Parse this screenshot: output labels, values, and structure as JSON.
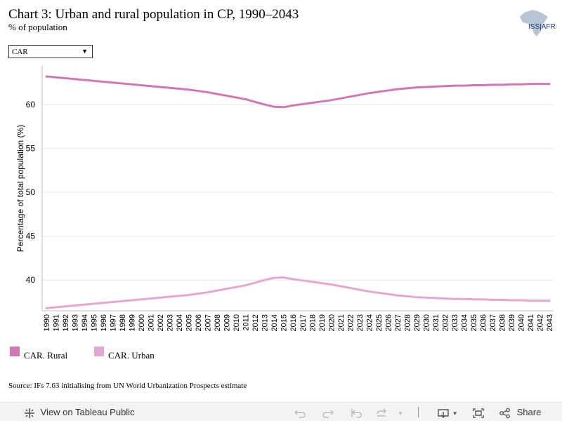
{
  "header": {
    "title": "Chart 3: Urban and rural population in CP, 1990–2043",
    "subtitle": "% of population"
  },
  "logo": {
    "text": "ISS|AFRICA"
  },
  "filter": {
    "selected": "CAR"
  },
  "chart_data": {
    "type": "line",
    "x": [
      1990,
      1991,
      1992,
      1993,
      1994,
      1995,
      1996,
      1997,
      1998,
      1999,
      2000,
      2001,
      2002,
      2003,
      2004,
      2005,
      2006,
      2007,
      2008,
      2009,
      2010,
      2011,
      2012,
      2013,
      2014,
      2015,
      2016,
      2017,
      2018,
      2019,
      2020,
      2021,
      2022,
      2023,
      2024,
      2025,
      2026,
      2027,
      2028,
      2029,
      2030,
      2031,
      2032,
      2033,
      2034,
      2035,
      2036,
      2037,
      2038,
      2039,
      2040,
      2041,
      2042,
      2043
    ],
    "series": [
      {
        "name": "CAR. Rural",
        "color": "#d178b4",
        "values": [
          63.2,
          63.1,
          63.0,
          62.9,
          62.8,
          62.7,
          62.6,
          62.5,
          62.4,
          62.3,
          62.2,
          62.1,
          62.0,
          61.9,
          61.8,
          61.7,
          61.55,
          61.4,
          61.2,
          61.0,
          60.8,
          60.6,
          60.3,
          60.0,
          59.75,
          59.7,
          59.9,
          60.05,
          60.2,
          60.35,
          60.5,
          60.7,
          60.9,
          61.1,
          61.3,
          61.45,
          61.6,
          61.75,
          61.85,
          61.95,
          62.0,
          62.05,
          62.1,
          62.15,
          62.15,
          62.2,
          62.2,
          62.25,
          62.25,
          62.3,
          62.3,
          62.35,
          62.35,
          62.35
        ]
      },
      {
        "name": "CAR. Urban",
        "color": "#e3a7d2",
        "values": [
          36.8,
          36.9,
          37.0,
          37.1,
          37.2,
          37.3,
          37.4,
          37.5,
          37.6,
          37.7,
          37.8,
          37.9,
          38.0,
          38.1,
          38.2,
          38.3,
          38.45,
          38.6,
          38.8,
          39.0,
          39.2,
          39.4,
          39.7,
          40.0,
          40.25,
          40.3,
          40.1,
          39.95,
          39.8,
          39.65,
          39.5,
          39.3,
          39.1,
          38.9,
          38.7,
          38.55,
          38.4,
          38.25,
          38.15,
          38.05,
          38.0,
          37.95,
          37.9,
          37.85,
          37.85,
          37.8,
          37.8,
          37.75,
          37.75,
          37.7,
          37.7,
          37.65,
          37.65,
          37.65
        ]
      }
    ],
    "ylabel": "Percentage of total population (%)",
    "xlabel": "",
    "ylim": [
      36.5,
      64.4
    ],
    "yticks": [
      40,
      45,
      50,
      55,
      60
    ],
    "grid": true
  },
  "source": "Source: IFs 7.63 initialising from UN World Urbanization Prospects estimate",
  "toolbar": {
    "view_label": "View on Tableau Public",
    "share_label": "Share"
  },
  "icons": {
    "view": "tableau-icon",
    "undo": "undo-icon",
    "redo": "redo-icon",
    "revert": "revert-icon",
    "refresh": "refresh-icon",
    "download": "download-icon",
    "fullscreen": "fullscreen-icon",
    "share": "share-icon"
  }
}
